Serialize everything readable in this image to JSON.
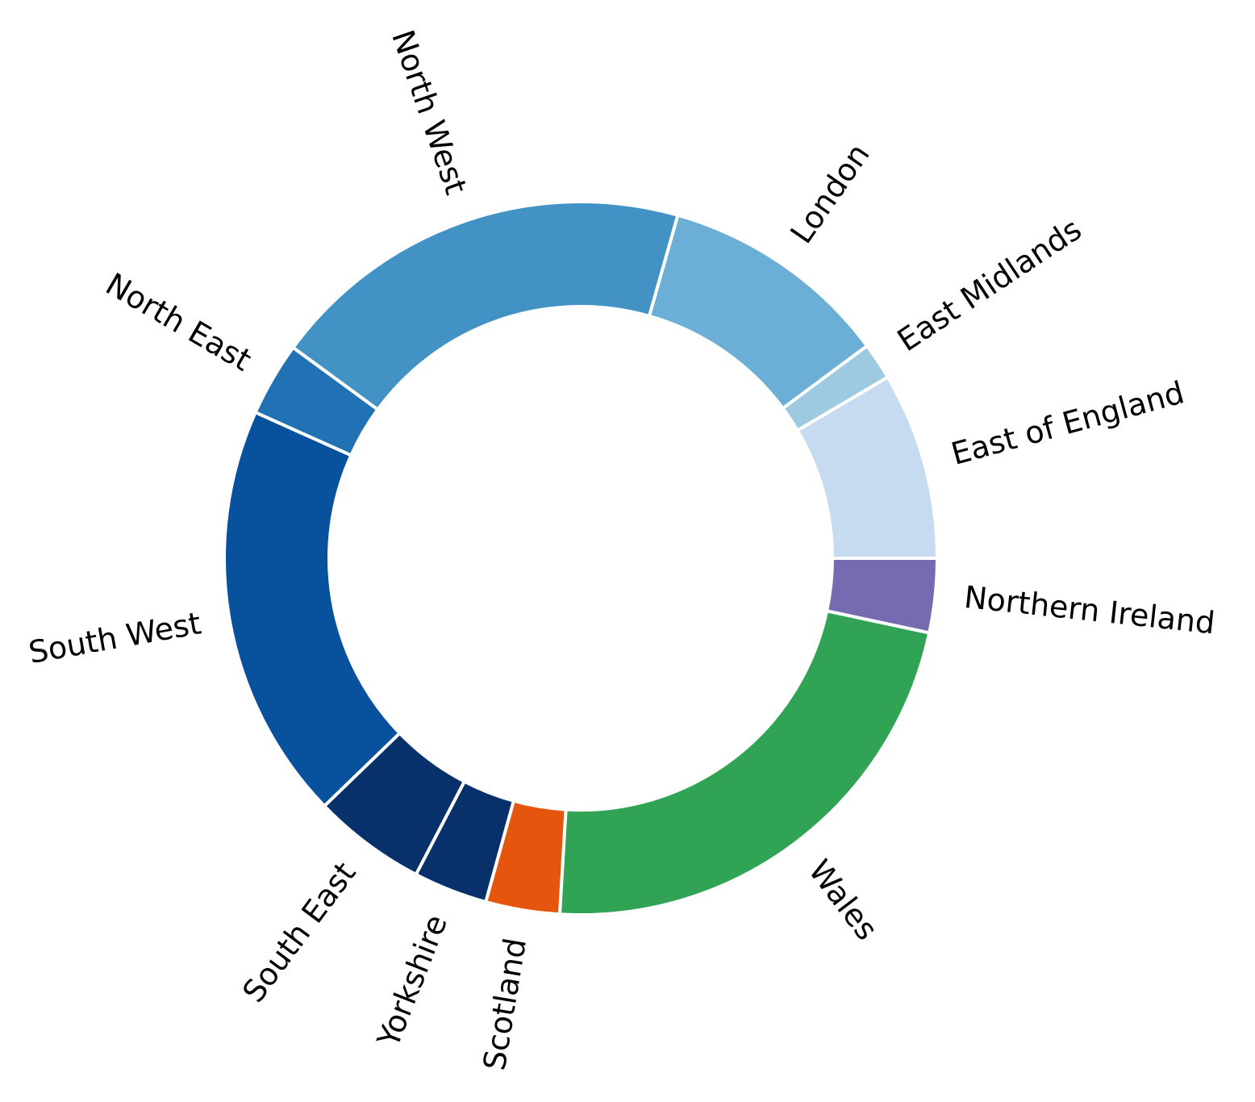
{
  "chart_data": {
    "type": "pie",
    "style": "donut",
    "start_angle_deg": 0,
    "direction": "counterclockwise",
    "rotated_labels": true,
    "legend": "none",
    "slices": [
      {
        "label": "East of England",
        "value": 8.6,
        "color": "#c6dbef"
      },
      {
        "label": "East Midlands",
        "value": 1.7,
        "color": "#9ecae1"
      },
      {
        "label": "London",
        "value": 10.6,
        "color": "#6baed6"
      },
      {
        "label": "North West",
        "value": 19.6,
        "color": "#4292c6"
      },
      {
        "label": "North East",
        "value": 3.4,
        "color": "#2171b5"
      },
      {
        "label": "South West",
        "value": 19.2,
        "color": "#08519c"
      },
      {
        "label": "South East",
        "value": 5.2,
        "color": "#08306b"
      },
      {
        "label": "Yorkshire",
        "value": 3.4,
        "color": "#08306b"
      },
      {
        "label": "Scotland",
        "value": 3.4,
        "color": "#e6550d"
      },
      {
        "label": "Wales",
        "value": 22.9,
        "color": "#31a354"
      },
      {
        "label": "Northern Ireland",
        "value": 3.4,
        "color": "#756bb1"
      }
    ]
  }
}
